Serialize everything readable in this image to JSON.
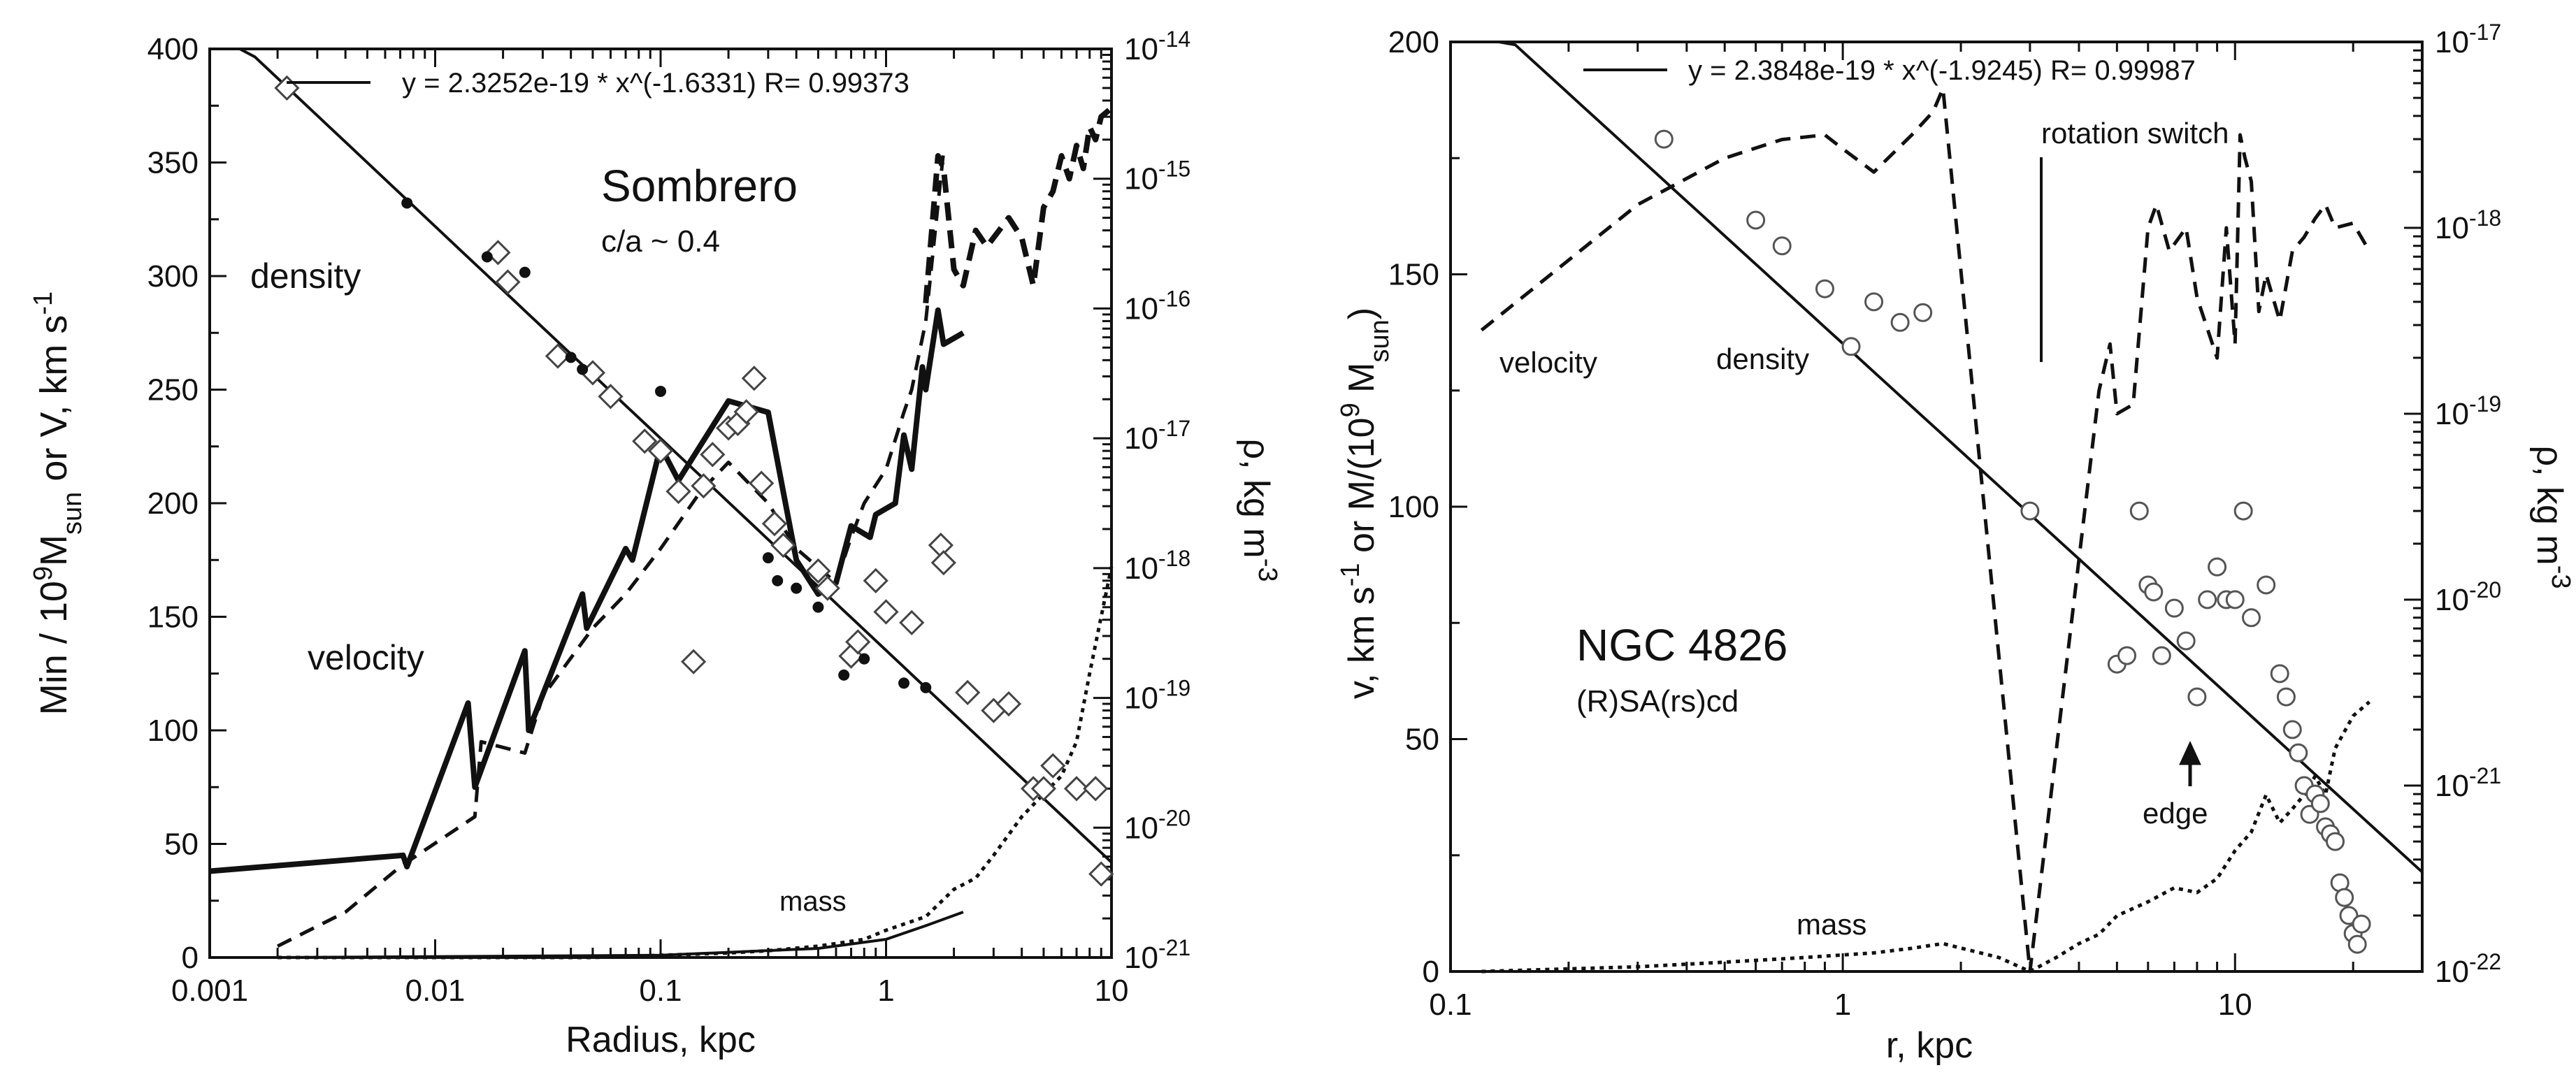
{
  "chart_data": [
    {
      "type": "scatter",
      "panel": "left",
      "title": "Sombrero",
      "subtitle": "c/a ~ 0.4",
      "fit_legend": "y = 2.3252e-19 * x^(-1.6331)    R= 0.99373",
      "xlabel": "Radius, kpc",
      "ylabel_left": "Min / 10^9M_sun    or    V, km s^-1",
      "ylabel_right": "ρ, kg m^-3",
      "x_scale": "log",
      "xlim": [
        0.001,
        10
      ],
      "y_left_lim": [
        0,
        400
      ],
      "y_right_scale": "log",
      "y_right_lim": [
        1e-21,
        1e-14
      ],
      "x_ticks": [
        "0.001",
        "0.01",
        "0.1",
        "1",
        "10"
      ],
      "y_left_ticks": [
        "0",
        "50",
        "100",
        "150",
        "200",
        "250",
        "300",
        "350",
        "400"
      ],
      "y_right_ticks": [
        "10^-21",
        "10^-20",
        "10^-19",
        "10^-18",
        "10^-17",
        "10^-16",
        "10^-15",
        "10^-14"
      ],
      "annotations": [
        "density",
        "velocity",
        "mass"
      ],
      "fit": {
        "a": 2.3252e-19,
        "b": -1.6331
      },
      "series": [
        {
          "name": "velocity (solid)",
          "style": "solid-thick",
          "axis": "left",
          "x": [
            0.001,
            0.0072,
            0.0075,
            0.014,
            0.015,
            0.025,
            0.026,
            0.045,
            0.047,
            0.07,
            0.075,
            0.1,
            0.12,
            0.2,
            0.3,
            0.35,
            0.4,
            0.5,
            0.6,
            0.7,
            0.85,
            0.9,
            1.1,
            1.2,
            1.3,
            1.45,
            1.5,
            1.7,
            1.8,
            2.2
          ],
          "y": [
            38,
            45,
            40,
            112,
            75,
            135,
            100,
            160,
            145,
            180,
            175,
            225,
            210,
            245,
            240,
            205,
            175,
            160,
            165,
            190,
            185,
            195,
            200,
            230,
            215,
            260,
            250,
            285,
            270,
            275
          ]
        },
        {
          "name": "velocity (dashed)",
          "style": "dashed",
          "axis": "left",
          "x": [
            0.002,
            0.004,
            0.007,
            0.015,
            0.016,
            0.025,
            0.03,
            0.05,
            0.07,
            0.1,
            0.15,
            0.2,
            0.3,
            0.4,
            0.6,
            0.7,
            0.8,
            1.0,
            1.2,
            1.3,
            1.5,
            1.8
          ],
          "y": [
            5,
            20,
            40,
            62,
            95,
            90,
            115,
            145,
            160,
            180,
            205,
            218,
            200,
            180,
            165,
            185,
            200,
            215,
            240,
            250,
            280,
            355
          ]
        },
        {
          "name": "density (diamonds)",
          "style": "open-diamond",
          "axis": "right",
          "x": [
            0.0022,
            0.019,
            0.021,
            0.035,
            0.05,
            0.06,
            0.085,
            0.1,
            0.12,
            0.14,
            0.155,
            0.17,
            0.2,
            0.22,
            0.24,
            0.26,
            0.28,
            0.32,
            0.35,
            0.5,
            0.55,
            0.7,
            0.75,
            0.9,
            1.0,
            1.3,
            1.75,
            1.8,
            2.3,
            3.0,
            3.5,
            4.5,
            5.0,
            5.5,
            7.0,
            8.5,
            9.0
          ],
          "y": [
            5e-15,
            2.7e-16,
            1.6e-16,
            4.3e-17,
            3.2e-17,
            2.1e-17,
            9.5e-18,
            8e-18,
            3.9e-18,
            1.9e-19,
            4.3e-18,
            7.5e-18,
            1.2e-17,
            1.3e-17,
            1.6e-17,
            2.9e-17,
            4.5e-18,
            2.2e-18,
            1.5e-18,
            9.5e-19,
            7e-19,
            2.1e-19,
            2.7e-19,
            8e-19,
            4.6e-19,
            3.8e-19,
            1.5e-18,
            1.1e-18,
            1.1e-19,
            8e-20,
            9e-20,
            2e-20,
            2e-20,
            3e-20,
            2e-20,
            2e-20,
            4.4e-21
          ]
        },
        {
          "name": "density (dots)",
          "style": "filled-dot",
          "axis": "right",
          "x": [
            0.0075,
            0.017,
            0.025,
            0.04,
            0.045,
            0.1,
            0.3,
            0.33,
            0.4,
            0.5,
            0.65,
            0.8,
            1.2,
            1.5
          ],
          "y": [
            6.5e-16,
            2.5e-16,
            1.9e-16,
            4.2e-17,
            3.4e-17,
            2.3e-17,
            1.2e-18,
            8e-19,
            7e-19,
            5e-19,
            1.5e-19,
            2e-19,
            1.3e-19,
            1.2e-19
          ]
        },
        {
          "name": "density (dashed)",
          "style": "dashed-thick",
          "axis": "right",
          "x": [
            1.5,
            1.7,
            1.8,
            2.0,
            2.2,
            2.5,
            2.8,
            3.5,
            4.0,
            4.5,
            5.0,
            5.5,
            6.0,
            6.5,
            7.0,
            7.5,
            8.0,
            8.5,
            9.0,
            10.0
          ],
          "y": [
            1.1e-16,
            1.5e-15,
            1.2e-15,
            2e-16,
            1.5e-16,
            4e-16,
            3e-16,
            5e-16,
            3.5e-16,
            1.5e-16,
            6e-16,
            8e-16,
            1.5e-15,
            1e-15,
            1.8e-15,
            1.2e-15,
            2.5e-15,
            2e-15,
            3e-15,
            3.5e-15
          ]
        },
        {
          "name": "mass (dotted)",
          "style": "dotted",
          "axis": "left",
          "x": [
            0.002,
            0.05,
            0.1,
            0.2,
            0.3,
            0.5,
            0.8,
            1.0,
            1.5,
            2.0,
            2.5,
            3.0,
            4.0,
            5.0,
            6.0,
            7.0,
            8.0,
            9.0,
            10.0
          ],
          "y": [
            0,
            0,
            1,
            2,
            3,
            5,
            8,
            12,
            18,
            30,
            35,
            45,
            62,
            72,
            80,
            95,
            125,
            150,
            172
          ]
        },
        {
          "name": "mass (solid)",
          "style": "solid",
          "axis": "left",
          "x": [
            0.002,
            0.1,
            0.5,
            1.0,
            1.5,
            2.2
          ],
          "y": [
            0,
            1,
            4,
            8,
            14,
            20
          ]
        }
      ]
    },
    {
      "type": "scatter",
      "panel": "right",
      "title": "NGC 4826",
      "subtitle": "(R)SA(rs)cd",
      "fit_legend": "y = 2.3848e-19 * x^(-1.9245)    R= 0.99987",
      "xlabel": "r, kpc",
      "ylabel_left": "v, km s^-1    or    M/(10^9 M_sun)",
      "ylabel_right": "ρ, kg m^-3",
      "x_scale": "log",
      "xlim": [
        0.1,
        30
      ],
      "y_left_lim": [
        0,
        200
      ],
      "y_right_scale": "log",
      "y_right_lim": [
        1e-22,
        1e-17
      ],
      "x_ticks": [
        "0.1",
        "1",
        "10"
      ],
      "y_left_ticks": [
        "0",
        "50",
        "100",
        "150",
        "200"
      ],
      "y_right_ticks": [
        "10^-22",
        "10^-21",
        "10^-20",
        "10^-19",
        "10^-18",
        "10^-17"
      ],
      "annotations": [
        "velocity",
        "density",
        "mass",
        "rotation switch",
        "edge"
      ],
      "fit": {
        "a": 2.3848e-19,
        "b": -1.9245
      },
      "series": [
        {
          "name": "velocity (dashed)",
          "style": "dashed",
          "axis": "left",
          "x": [
            0.12,
            0.3,
            0.5,
            0.7,
            0.9,
            1.0,
            1.2,
            1.5,
            1.7,
            1.8,
            3.0,
            4.5,
            4.8,
            5.0,
            5.5,
            6.0,
            6.3,
            6.8,
            7.5,
            8.0,
            9.0,
            9.5,
            10.0,
            10.3,
            10.6,
            11.0,
            11.5,
            12.0,
            13.0,
            14.0,
            15.0,
            16.0,
            17.0,
            18.0,
            20.0,
            22.0
          ],
          "y": [
            138,
            165,
            175,
            179,
            180,
            177,
            172,
            180,
            185,
            190,
            0,
            125,
            135,
            120,
            122,
            160,
            165,
            155,
            160,
            145,
            132,
            160,
            135,
            180,
            175,
            170,
            142,
            150,
            140,
            155,
            158,
            162,
            165,
            160,
            161,
            155
          ]
        },
        {
          "name": "density (circles)",
          "style": "open-circle",
          "axis": "right",
          "x": [
            0.35,
            0.6,
            0.7,
            0.9,
            1.05,
            1.2,
            1.4,
            1.6,
            3.0,
            5.0,
            5.3,
            5.7,
            6.0,
            6.2,
            6.5,
            7.0,
            7.5,
            8.0,
            8.5,
            9.0,
            9.5,
            10.0,
            10.5,
            11.0,
            12.0,
            13.0,
            13.5,
            14.0,
            14.5,
            15.0,
            15.5,
            16.0,
            16.5,
            17.0,
            17.5,
            18.0,
            18.5,
            19.0,
            19.5,
            20.0,
            20.5,
            21.0
          ],
          "y": [
            3e-18,
            1.1e-18,
            8e-19,
            4.7e-19,
            2.3e-19,
            4e-19,
            3.1e-19,
            3.5e-19,
            3e-20,
            4.5e-21,
            5e-21,
            3e-20,
            1.2e-20,
            1.1e-20,
            5e-21,
            9e-21,
            6e-21,
            3e-21,
            1e-20,
            1.5e-20,
            1e-20,
            1e-20,
            3e-20,
            8e-21,
            1.2e-20,
            4e-21,
            3e-21,
            2e-21,
            1.5e-21,
            1e-21,
            7e-22,
            9e-22,
            8e-22,
            6e-22,
            5.5e-22,
            5e-22,
            3e-22,
            2.5e-22,
            2e-22,
            1.6e-22,
            1.4e-22,
            1.8e-22
          ]
        },
        {
          "name": "mass (dotted)",
          "style": "dotted",
          "axis": "left",
          "x": [
            0.12,
            0.3,
            0.5,
            0.8,
            1.2,
            1.5,
            1.8,
            2.5,
            3.0,
            3.5,
            4.0,
            4.5,
            5.0,
            6.0,
            7.0,
            8.0,
            9.0,
            10.0,
            11.0,
            12.0,
            13.0,
            14.0,
            15.0,
            16.0,
            17.0,
            18.0,
            20.0,
            22.0
          ],
          "y": [
            0,
            1,
            2,
            3,
            4,
            5,
            6,
            3,
            0,
            3,
            6,
            8,
            12,
            15,
            18,
            17,
            20,
            26,
            30,
            38,
            32,
            35,
            38,
            42,
            38,
            48,
            55,
            58
          ]
        }
      ]
    }
  ]
}
